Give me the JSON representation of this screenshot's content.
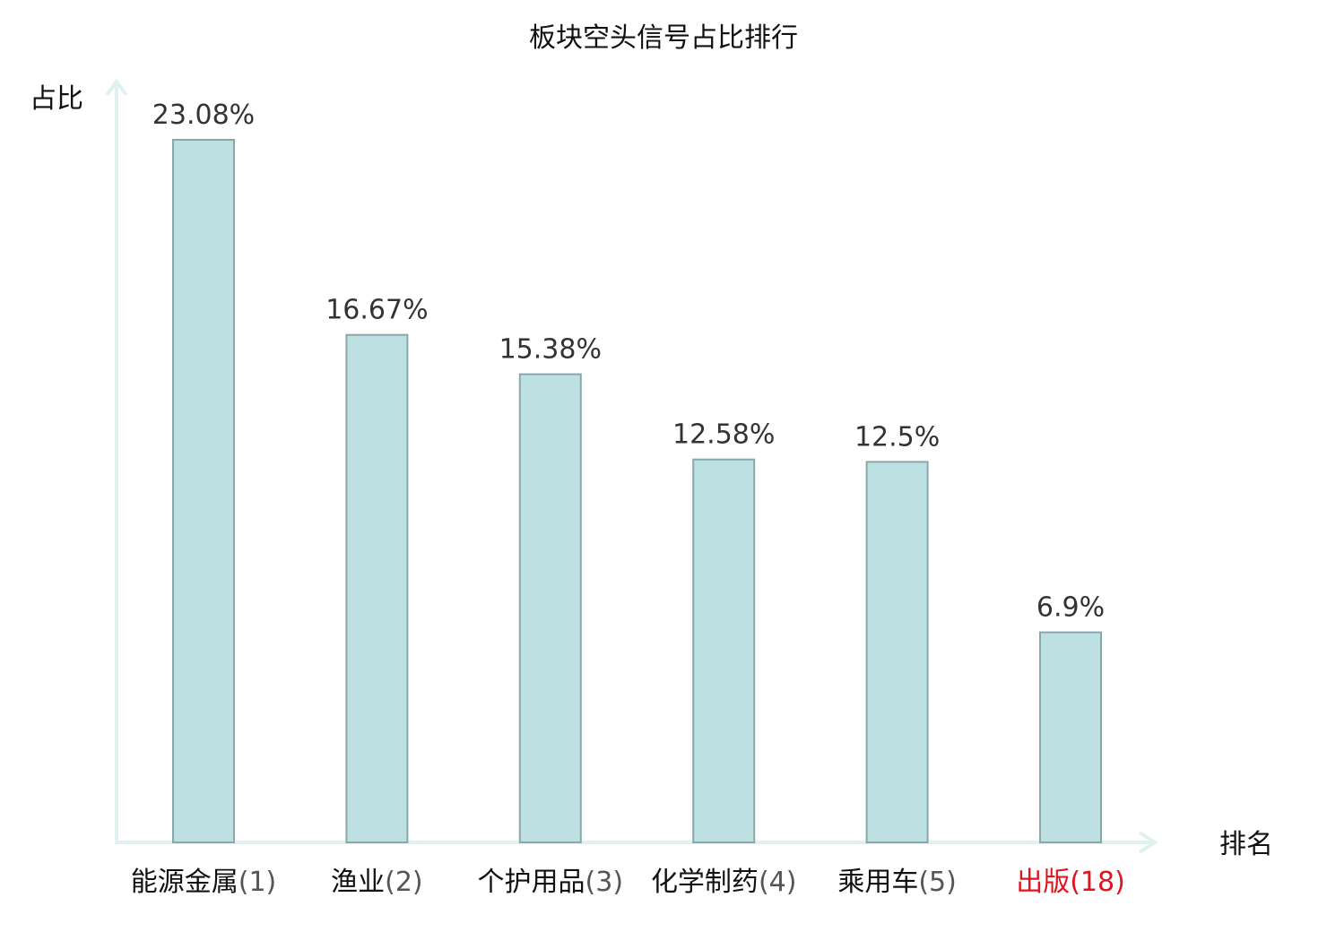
{
  "chart_data": {
    "type": "bar",
    "title": "板块空头信号占比排行",
    "ylabel": "占比",
    "xlabel": "排名",
    "categories": [
      {
        "name": "能源金属",
        "rank": "(1)",
        "highlight": false
      },
      {
        "name": "渔业",
        "rank": "(2)",
        "highlight": false
      },
      {
        "name": "个护用品",
        "rank": "(3)",
        "highlight": false
      },
      {
        "name": "化学制药",
        "rank": "(4)",
        "highlight": false
      },
      {
        "name": "乘用车",
        "rank": "(5)",
        "highlight": false
      },
      {
        "name": "出版",
        "rank": "(18)",
        "highlight": true
      }
    ],
    "values": [
      23.08,
      16.67,
      15.38,
      12.58,
      12.5,
      6.9
    ],
    "value_labels": [
      "23.08%",
      "16.67%",
      "15.38%",
      "12.58%",
      "12.5%",
      "6.9%"
    ],
    "ylim": [
      0,
      25
    ],
    "grid": false,
    "colors": {
      "bar_fill": "#bde0e3",
      "bar_stroke": "#8aa8ab",
      "axis": "#e0f2ef",
      "highlight_text": "#e0141e",
      "normal_text": "#111111",
      "rank_text": "#555555"
    }
  }
}
